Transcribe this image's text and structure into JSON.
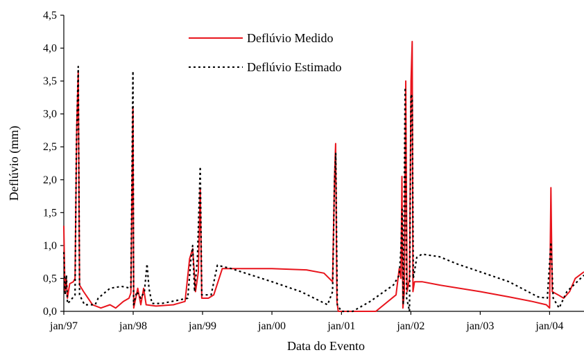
{
  "chart_data": {
    "type": "line",
    "xlabel": "Data do Evento",
    "ylabel": "Deflúvio (mm)",
    "ylim": [
      0,
      4.5
    ],
    "xlim": [
      "1997-01-01",
      "2004-06-30"
    ],
    "y_ticks": [
      "0,0",
      "0,5",
      "1,0",
      "1,5",
      "2,0",
      "2,5",
      "3,0",
      "3,5",
      "4,0",
      "4,5"
    ],
    "x_ticks": [
      {
        "date": "1997-01-01",
        "label": "jan/97"
      },
      {
        "date": "1998-01-01",
        "label": "jan/98"
      },
      {
        "date": "1999-01-01",
        "label": "jan/99"
      },
      {
        "date": "2000-01-01",
        "label": "jan/00"
      },
      {
        "date": "2001-01-01",
        "label": "jan/01"
      },
      {
        "date": "2002-01-01",
        "label": "jan/02"
      },
      {
        "date": "2003-01-01",
        "label": "jan/03"
      },
      {
        "date": "2004-01-01",
        "label": "jan/04"
      }
    ],
    "grid": false,
    "legend_position": "top-center",
    "series": [
      {
        "name": "Deflúvio Medido",
        "color": "#e8141c",
        "style": "solid",
        "points": [
          [
            "1997-01-01",
            1.3
          ],
          [
            "1997-01-07",
            0.3
          ],
          [
            "1997-01-14",
            0.5
          ],
          [
            "1997-01-20",
            0.2
          ],
          [
            "1997-02-01",
            0.42
          ],
          [
            "1997-02-20",
            0.45
          ],
          [
            "1997-03-01",
            0.5
          ],
          [
            "1997-03-10",
            2.8
          ],
          [
            "1997-03-18",
            3.65
          ],
          [
            "1997-03-25",
            0.4
          ],
          [
            "1997-04-15",
            0.3
          ],
          [
            "1997-06-01",
            0.1
          ],
          [
            "1997-07-15",
            0.05
          ],
          [
            "1997-09-01",
            0.1
          ],
          [
            "1997-10-01",
            0.05
          ],
          [
            "1997-11-10",
            0.15
          ],
          [
            "1997-12-10",
            0.2
          ],
          [
            "1997-12-20",
            0.28
          ],
          [
            "1997-12-31",
            3.1
          ],
          [
            "1998-01-04",
            0.05
          ],
          [
            "1998-01-25",
            0.35
          ],
          [
            "1998-02-10",
            0.1
          ],
          [
            "1998-02-25",
            0.35
          ],
          [
            "1998-03-10",
            0.1
          ],
          [
            "1998-05-01",
            0.08
          ],
          [
            "1998-08-01",
            0.1
          ],
          [
            "1998-10-01",
            0.15
          ],
          [
            "1998-10-25",
            0.8
          ],
          [
            "1998-11-10",
            0.95
          ],
          [
            "1998-11-25",
            0.3
          ],
          [
            "1998-12-10",
            0.6
          ],
          [
            "1998-12-20",
            1.85
          ],
          [
            "1998-12-28",
            0.2
          ],
          [
            "1999-02-01",
            0.2
          ],
          [
            "1999-03-01",
            0.25
          ],
          [
            "1999-04-15",
            0.65
          ],
          [
            "2000-01-01",
            0.65
          ],
          [
            "2000-07-01",
            0.63
          ],
          [
            "2000-10-01",
            0.58
          ],
          [
            "2000-11-15",
            0.45
          ],
          [
            "2000-11-25",
            2.0
          ],
          [
            "2000-12-01",
            2.55
          ],
          [
            "2000-12-08",
            0.15
          ],
          [
            "2000-12-15",
            0.0
          ],
          [
            "2001-05-01",
            0.0
          ],
          [
            "2001-07-01",
            0.0
          ],
          [
            "2001-10-15",
            0.25
          ],
          [
            "2001-11-01",
            0.65
          ],
          [
            "2001-11-10",
            0.5
          ],
          [
            "2001-11-15",
            2.05
          ],
          [
            "2001-11-20",
            0.05
          ],
          [
            "2001-11-28",
            0.3
          ],
          [
            "2001-12-05",
            3.5
          ],
          [
            "2001-12-12",
            0.3
          ],
          [
            "2001-12-25",
            0.5
          ],
          [
            "2002-01-02",
            3.5
          ],
          [
            "2002-01-08",
            4.1
          ],
          [
            "2002-01-12",
            0.3
          ],
          [
            "2002-01-20",
            0.45
          ],
          [
            "2002-03-01",
            0.45
          ],
          [
            "2002-06-01",
            0.4
          ],
          [
            "2003-01-01",
            0.3
          ],
          [
            "2003-06-01",
            0.22
          ],
          [
            "2003-10-01",
            0.15
          ],
          [
            "2003-12-15",
            0.1
          ],
          [
            "2004-01-01",
            0.05
          ],
          [
            "2004-01-08",
            1.88
          ],
          [
            "2004-01-15",
            0.3
          ],
          [
            "2004-02-15",
            0.25
          ],
          [
            "2004-03-15",
            0.2
          ],
          [
            "2004-04-15",
            0.3
          ],
          [
            "2004-05-15",
            0.5
          ],
          [
            "2004-06-30",
            0.6
          ]
        ]
      },
      {
        "name": "Deflúvio Estimado",
        "color": "#000000",
        "style": "dotted",
        "points": [
          [
            "1997-01-01",
            0.9
          ],
          [
            "1997-01-08",
            0.25
          ],
          [
            "1997-01-15",
            0.55
          ],
          [
            "1997-01-20",
            0.12
          ],
          [
            "1997-02-01",
            0.15
          ],
          [
            "1997-03-01",
            0.25
          ],
          [
            "1997-03-08",
            2.5
          ],
          [
            "1997-03-18",
            3.72
          ],
          [
            "1997-03-25",
            0.25
          ],
          [
            "1997-04-20",
            0.1
          ],
          [
            "1997-06-15",
            0.1
          ],
          [
            "1997-07-01",
            0.2
          ],
          [
            "1997-09-01",
            0.35
          ],
          [
            "1997-11-01",
            0.38
          ],
          [
            "1997-12-20",
            0.35
          ],
          [
            "1997-12-31",
            3.65
          ],
          [
            "1998-01-03",
            0.1
          ],
          [
            "1998-01-20",
            0.3
          ],
          [
            "1998-02-10",
            0.2
          ],
          [
            "1998-03-01",
            0.3
          ],
          [
            "1998-03-15",
            0.72
          ],
          [
            "1998-03-25",
            0.35
          ],
          [
            "1998-04-10",
            0.12
          ],
          [
            "1998-06-01",
            0.12
          ],
          [
            "1998-10-15",
            0.2
          ],
          [
            "1998-11-01",
            0.8
          ],
          [
            "1998-11-10",
            1.0
          ],
          [
            "1998-11-20",
            0.3
          ],
          [
            "1998-12-05",
            0.8
          ],
          [
            "1998-12-20",
            2.2
          ],
          [
            "1998-12-28",
            0.25
          ],
          [
            "1999-02-15",
            0.25
          ],
          [
            "1999-03-20",
            0.7
          ],
          [
            "1999-06-01",
            0.65
          ],
          [
            "2000-01-01",
            0.45
          ],
          [
            "2000-06-01",
            0.3
          ],
          [
            "2000-10-20",
            0.1
          ],
          [
            "2000-11-15",
            0.3
          ],
          [
            "2000-11-25",
            1.95
          ],
          [
            "2000-12-02",
            2.4
          ],
          [
            "2000-12-10",
            0.1
          ],
          [
            "2001-01-01",
            0.0
          ],
          [
            "2001-03-01",
            0.0
          ],
          [
            "2001-06-01",
            0.15
          ],
          [
            "2001-10-01",
            0.4
          ],
          [
            "2001-11-01",
            0.55
          ],
          [
            "2001-11-10",
            0.95
          ],
          [
            "2001-11-16",
            1.55
          ],
          [
            "2001-11-22",
            0.1
          ],
          [
            "2001-12-02",
            3.4
          ],
          [
            "2001-12-10",
            0.2
          ],
          [
            "2001-12-25",
            0.0
          ],
          [
            "2002-01-02",
            3.3
          ],
          [
            "2002-01-08",
            3.25
          ],
          [
            "2002-01-14",
            0.5
          ],
          [
            "2002-02-01",
            0.82
          ],
          [
            "2002-03-01",
            0.87
          ],
          [
            "2002-06-01",
            0.83
          ],
          [
            "2002-09-01",
            0.72
          ],
          [
            "2003-01-01",
            0.6
          ],
          [
            "2003-06-01",
            0.45
          ],
          [
            "2003-11-01",
            0.22
          ],
          [
            "2003-12-20",
            0.2
          ],
          [
            "2004-01-08",
            1.05
          ],
          [
            "2004-01-20",
            0.2
          ],
          [
            "2004-02-20",
            0.05
          ],
          [
            "2004-04-01",
            0.3
          ],
          [
            "2004-06-30",
            0.55
          ]
        ]
      }
    ]
  }
}
